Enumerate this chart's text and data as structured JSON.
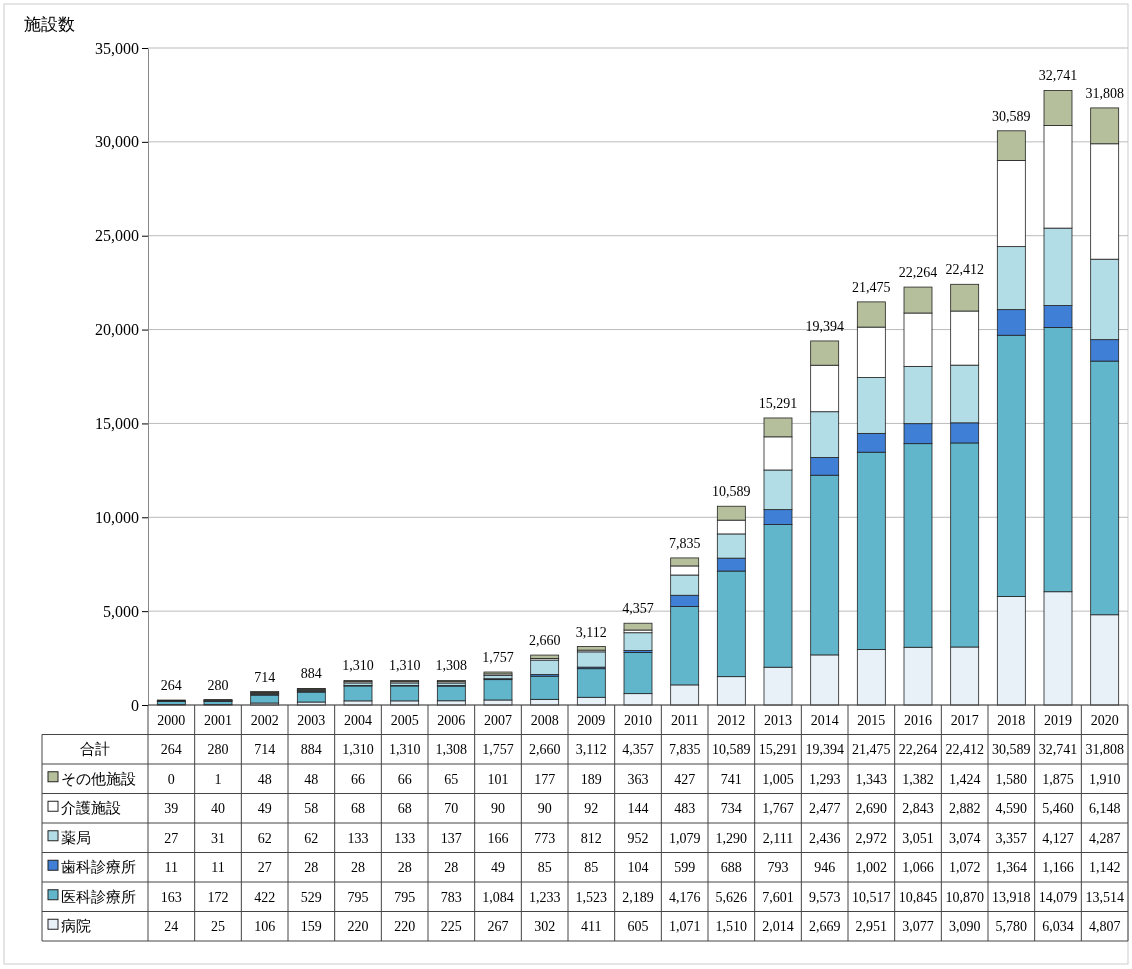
{
  "chart_data": {
    "type": "bar",
    "stacked": true,
    "ylabel": "施設数",
    "categories": [
      "2000",
      "2001",
      "2002",
      "2003",
      "2004",
      "2005",
      "2006",
      "2007",
      "2008",
      "2009",
      "2010",
      "2011",
      "2012",
      "2013",
      "2014",
      "2015",
      "2016",
      "2017",
      "2018",
      "2019",
      "2020"
    ],
    "series": [
      {
        "name": "病院",
        "color": "#e8f0f8",
        "values": [
          24,
          25,
          106,
          159,
          220,
          220,
          225,
          267,
          302,
          411,
          605,
          1071,
          1510,
          2014,
          2669,
          2951,
          3077,
          3090,
          5780,
          6034,
          4807
        ],
        "value_labels": [
          "24",
          "25",
          "106",
          "159",
          "220",
          "220",
          "225",
          "267",
          "302",
          "411",
          "605",
          "1,071",
          "1,510",
          "2,014",
          "2,669",
          "2,951",
          "3,077",
          "3,090",
          "5,780",
          "6,034",
          "4,807"
        ]
      },
      {
        "name": "医科診療所",
        "color": "#62b6cc",
        "values": [
          163,
          172,
          422,
          529,
          795,
          795,
          783,
          1084,
          1233,
          1523,
          2189,
          4176,
          5626,
          7601,
          9573,
          10517,
          10845,
          10870,
          13918,
          14079,
          13514
        ],
        "value_labels": [
          "163",
          "172",
          "422",
          "529",
          "795",
          "795",
          "783",
          "1,084",
          "1,233",
          "1,523",
          "2,189",
          "4,176",
          "5,626",
          "7,601",
          "9,573",
          "10,517",
          "10,845",
          "10,870",
          "13,918",
          "14,079",
          "13,514"
        ]
      },
      {
        "name": "歯科診療所",
        "color": "#3f7fd6",
        "values": [
          11,
          11,
          27,
          28,
          28,
          28,
          28,
          49,
          85,
          85,
          104,
          599,
          688,
          793,
          946,
          1002,
          1066,
          1072,
          1364,
          1166,
          1142
        ],
        "value_labels": [
          "11",
          "11",
          "27",
          "28",
          "28",
          "28",
          "28",
          "49",
          "85",
          "85",
          "104",
          "599",
          "688",
          "793",
          "946",
          "1,002",
          "1,066",
          "1,072",
          "1,364",
          "1,166",
          "1,142"
        ]
      },
      {
        "name": "薬局",
        "color": "#b3dde6",
        "values": [
          27,
          31,
          62,
          62,
          133,
          133,
          137,
          166,
          773,
          812,
          952,
          1079,
          1290,
          2111,
          2436,
          2972,
          3051,
          3074,
          3357,
          4127,
          4287
        ],
        "value_labels": [
          "27",
          "31",
          "62",
          "62",
          "133",
          "133",
          "137",
          "166",
          "773",
          "812",
          "952",
          "1,079",
          "1,290",
          "2,111",
          "2,436",
          "2,972",
          "3,051",
          "3,074",
          "3,357",
          "4,127",
          "4,287"
        ]
      },
      {
        "name": "介護施設",
        "color": "#ffffff",
        "values": [
          39,
          40,
          49,
          58,
          68,
          68,
          70,
          90,
          90,
          92,
          144,
          483,
          734,
          1767,
          2477,
          2690,
          2843,
          2882,
          4590,
          5460,
          6148
        ],
        "value_labels": [
          "39",
          "40",
          "49",
          "58",
          "68",
          "68",
          "70",
          "90",
          "90",
          "92",
          "144",
          "483",
          "734",
          "1,767",
          "2,477",
          "2,690",
          "2,843",
          "2,882",
          "4,590",
          "5,460",
          "6,148"
        ]
      },
      {
        "name": "その他施設",
        "color": "#b5bf9c",
        "values": [
          0,
          1,
          48,
          48,
          66,
          66,
          65,
          101,
          177,
          189,
          363,
          427,
          741,
          1005,
          1293,
          1343,
          1382,
          1424,
          1580,
          1875,
          1910
        ],
        "value_labels": [
          "0",
          "1",
          "48",
          "48",
          "66",
          "66",
          "65",
          "101",
          "177",
          "189",
          "363",
          "427",
          "741",
          "1,005",
          "1,293",
          "1,343",
          "1,382",
          "1,424",
          "1,580",
          "1,875",
          "1,910"
        ]
      }
    ],
    "totals": [
      "264",
      "280",
      "714",
      "884",
      "1,310",
      "1,310",
      "1,308",
      "1,757",
      "2,660",
      "3,112",
      "4,357",
      "7,835",
      "10,589",
      "15,291",
      "19,394",
      "21,475",
      "22,264",
      "22,412",
      "30,589",
      "32,741",
      "31,808"
    ],
    "annotations": [
      "合計"
    ],
    "ylim": [
      0,
      35000
    ],
    "yticks": [
      0,
      {
        "value": 5000,
        "label": "5,000"
      },
      {
        "value": 10000,
        "label": "10,000"
      },
      {
        "value": 15000,
        "label": "15,000"
      },
      {
        "value": 20000,
        "label": "20,000"
      },
      {
        "value": 25000,
        "label": "25,000"
      },
      {
        "value": 30000,
        "label": "30,000"
      },
      {
        "value": 35000,
        "label": "35,000"
      }
    ],
    "grid": "y",
    "legend": "bottom left"
  }
}
